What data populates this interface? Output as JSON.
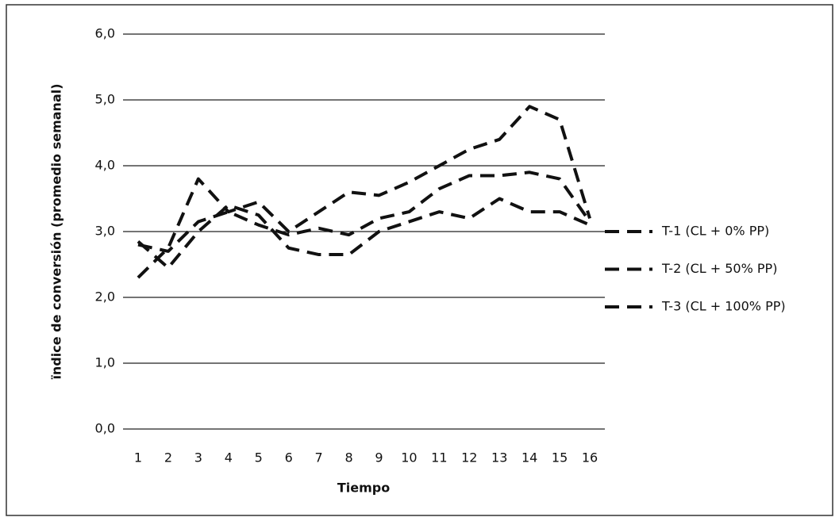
{
  "chart_data": {
    "type": "line",
    "x_label": "Tiempo",
    "y_label": "ïndice de conversión  (promedio semanal)",
    "categories": [
      "1",
      "2",
      "3",
      "4",
      "5",
      "6",
      "7",
      "8",
      "9",
      "10",
      "11",
      "12",
      "13",
      "14",
      "15",
      "16"
    ],
    "series": [
      {
        "name": "T-1 (CL + 0% PP)",
        "color": "#111111",
        "values": [
          2.8,
          2.7,
          3.15,
          3.3,
          3.1,
          2.95,
          3.05,
          2.95,
          3.2,
          3.3,
          3.65,
          3.85,
          3.85,
          3.9,
          3.8,
          3.15
        ]
      },
      {
        "name": "T-2 (CL + 50% PP)",
        "color": "#111111",
        "values": [
          2.3,
          2.75,
          3.8,
          3.3,
          3.45,
          3.0,
          3.3,
          3.6,
          3.55,
          3.75,
          4.0,
          4.25,
          4.4,
          4.9,
          4.7,
          3.2
        ]
      },
      {
        "name": "T-3 (CL + 100% PP)",
        "color": "#111111",
        "values": [
          2.85,
          2.45,
          3.0,
          3.4,
          3.25,
          2.75,
          2.65,
          2.65,
          3.0,
          3.15,
          3.3,
          3.2,
          3.5,
          3.3,
          3.3,
          3.1
        ]
      }
    ],
    "ylim": [
      0,
      6
    ],
    "yticks": [
      {
        "value": 0,
        "label": "0,0"
      },
      {
        "value": 1,
        "label": "1,0"
      },
      {
        "value": 2,
        "label": "2,0"
      },
      {
        "value": 3,
        "label": "3,0"
      },
      {
        "value": 4,
        "label": "4,0"
      },
      {
        "value": 5,
        "label": "5,0"
      },
      {
        "value": 6,
        "label": "6,0"
      }
    ],
    "grid": true
  }
}
